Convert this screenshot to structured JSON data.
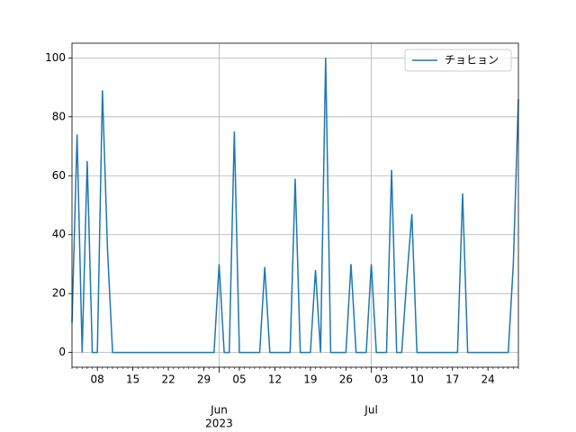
{
  "chart_data": {
    "type": "line",
    "x": [
      "2023-05-03",
      "2023-05-04",
      "2023-05-05",
      "2023-05-06",
      "2023-05-07",
      "2023-05-08",
      "2023-05-09",
      "2023-05-10",
      "2023-05-11",
      "2023-05-12",
      "2023-05-13",
      "2023-05-14",
      "2023-05-15",
      "2023-05-16",
      "2023-05-17",
      "2023-05-18",
      "2023-05-19",
      "2023-05-20",
      "2023-05-21",
      "2023-05-22",
      "2023-05-23",
      "2023-05-24",
      "2023-05-25",
      "2023-05-26",
      "2023-05-27",
      "2023-05-28",
      "2023-05-29",
      "2023-05-30",
      "2023-05-31",
      "2023-06-01",
      "2023-06-02",
      "2023-06-03",
      "2023-06-04",
      "2023-06-05",
      "2023-06-06",
      "2023-06-07",
      "2023-06-08",
      "2023-06-09",
      "2023-06-10",
      "2023-06-11",
      "2023-06-12",
      "2023-06-13",
      "2023-06-14",
      "2023-06-15",
      "2023-06-16",
      "2023-06-17",
      "2023-06-18",
      "2023-06-19",
      "2023-06-20",
      "2023-06-21",
      "2023-06-22",
      "2023-06-23",
      "2023-06-24",
      "2023-06-25",
      "2023-06-26",
      "2023-06-27",
      "2023-06-28",
      "2023-06-29",
      "2023-06-30",
      "2023-07-01",
      "2023-07-02",
      "2023-07-03",
      "2023-07-04",
      "2023-07-05",
      "2023-07-06",
      "2023-07-07",
      "2023-07-08",
      "2023-07-09",
      "2023-07-10",
      "2023-07-11",
      "2023-07-12",
      "2023-07-13",
      "2023-07-14",
      "2023-07-15",
      "2023-07-16",
      "2023-07-17",
      "2023-07-18",
      "2023-07-19",
      "2023-07-20",
      "2023-07-21",
      "2023-07-22",
      "2023-07-23",
      "2023-07-24",
      "2023-07-25",
      "2023-07-26",
      "2023-07-27",
      "2023-07-28",
      "2023-07-29",
      "2023-07-30"
    ],
    "series": [
      {
        "name": "チョヒョン",
        "color": "#1f77b4",
        "values": [
          10,
          74,
          0,
          65,
          0,
          0,
          89,
          35,
          0,
          0,
          0,
          0,
          0,
          0,
          0,
          0,
          0,
          0,
          0,
          0,
          0,
          0,
          0,
          0,
          0,
          0,
          0,
          0,
          0,
          30,
          0,
          0,
          75,
          0,
          0,
          0,
          0,
          0,
          29,
          0,
          0,
          0,
          0,
          0,
          59,
          0,
          0,
          0,
          28,
          0,
          100,
          0,
          0,
          0,
          0,
          30,
          0,
          0,
          0,
          30,
          0,
          0,
          0,
          62,
          0,
          0,
          25,
          47,
          0,
          0,
          0,
          0,
          0,
          0,
          0,
          0,
          0,
          54,
          0,
          0,
          0,
          0,
          0,
          0,
          0,
          0,
          0,
          30,
          86
        ]
      }
    ],
    "xlim": [
      "2023-05-03",
      "2023-07-30"
    ],
    "xticks": [
      {
        "value": "2023-05-08",
        "label": "08"
      },
      {
        "value": "2023-05-15",
        "label": "15"
      },
      {
        "value": "2023-05-22",
        "label": "22"
      },
      {
        "value": "2023-05-29",
        "label": "29"
      },
      {
        "value": "2023-06-05",
        "label": "05"
      },
      {
        "value": "2023-06-12",
        "label": "12"
      },
      {
        "value": "2023-06-19",
        "label": "19"
      },
      {
        "value": "2023-06-26",
        "label": "26"
      },
      {
        "value": "2023-07-03",
        "label": "03"
      },
      {
        "value": "2023-07-10",
        "label": "10"
      },
      {
        "value": "2023-07-17",
        "label": "17"
      },
      {
        "value": "2023-07-24",
        "label": "24"
      }
    ],
    "xticks_major": [
      {
        "value": "2023-06-01",
        "label": "Jun",
        "sublabel": "2023"
      },
      {
        "value": "2023-07-01",
        "label": "Jul"
      }
    ],
    "ylim": [
      -5,
      105
    ],
    "yticks": [
      0,
      20,
      40,
      60,
      80,
      100
    ],
    "grid": true,
    "legend": "upper right"
  }
}
